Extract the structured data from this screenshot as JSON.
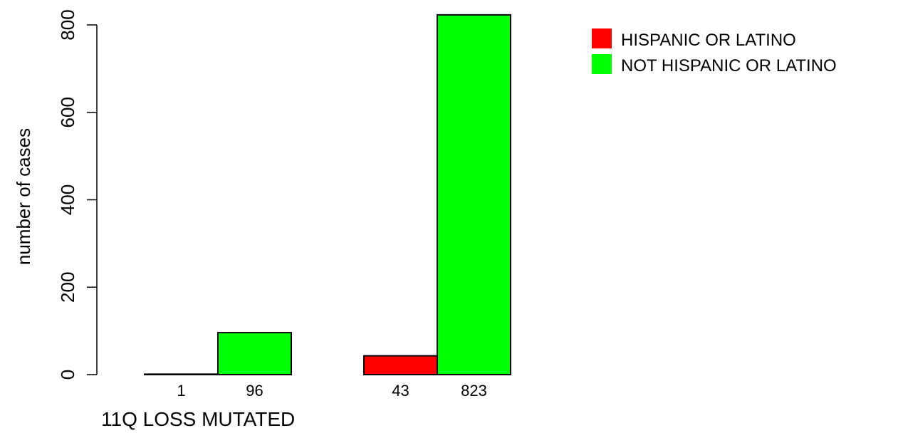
{
  "chart_data": {
    "type": "bar",
    "title": "",
    "xlabel": "11Q LOSS MUTATED",
    "ylabel": "number of cases",
    "ylim": [
      0,
      820
    ],
    "yticks": [
      0,
      200,
      400,
      600,
      800
    ],
    "grid": false,
    "legend_position": "top-right",
    "groups": [
      {
        "bars": [
          {
            "series": "HISPANIC OR LATINO",
            "value": 1,
            "label": "1"
          },
          {
            "series": "NOT HISPANIC OR LATINO",
            "value": 96,
            "label": "96"
          }
        ]
      },
      {
        "bars": [
          {
            "series": "HISPANIC OR LATINO",
            "value": 43,
            "label": "43"
          },
          {
            "series": "NOT HISPANIC OR LATINO",
            "value": 823,
            "label": "823"
          }
        ]
      }
    ],
    "series": [
      {
        "name": "HISPANIC OR LATINO",
        "color": "#ff0000"
      },
      {
        "name": "NOT HISPANIC OR LATINO",
        "color": "#00ff00"
      }
    ]
  }
}
